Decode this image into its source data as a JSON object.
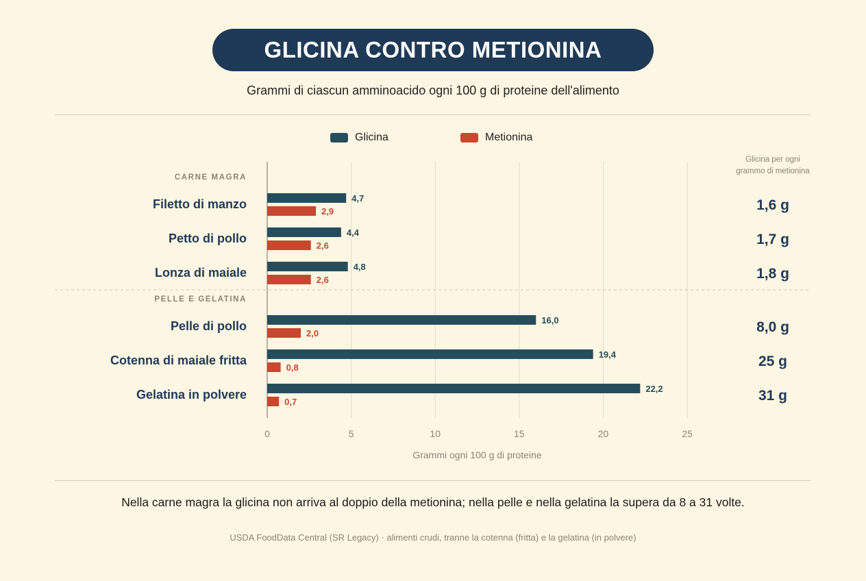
{
  "title": "GLICINA CONTRO METIONINA",
  "subtitle": "Grammi di ciascun amminoacido ogni 100 g di proteine dell'alimento",
  "caption": "Nella carne magra la glicina non arriva al doppio della metionina; nella pelle e nella gelatina la supera da 8 a 31 volte.",
  "source": "USDA FoodData Central (SR Legacy) · alimenti crudi, tranne la cotenna (fritta) e la gelatina (in polvere)",
  "colors": {
    "glicina": "#264d5c",
    "metionina": "#c8472f",
    "title_bg": "#1f3a56",
    "label": "#1f3a56"
  },
  "chart_data": {
    "type": "bar",
    "orientation": "horizontal",
    "xlabel": "Grammi ogni 100 g di proteine",
    "xlim": [
      0,
      25
    ],
    "xticks": [
      0,
      5,
      10,
      15,
      20,
      25
    ],
    "legend": "top-center",
    "ratio_header": [
      "Glicina per ogni",
      "grammo di metionina"
    ],
    "series": [
      {
        "name": "Glicina",
        "color": "#264d5c"
      },
      {
        "name": "Metionina",
        "color": "#c8472f"
      }
    ],
    "groups": [
      {
        "label": "CARNE MAGRA",
        "items": [
          {
            "name": "Filetto di manzo",
            "glicina": 4.7,
            "glicina_label": "4,7",
            "metionina": 2.9,
            "metionina_label": "2,9",
            "ratio": "1,6 g"
          },
          {
            "name": "Petto di pollo",
            "glicina": 4.4,
            "glicina_label": "4,4",
            "metionina": 2.6,
            "metionina_label": "2,6",
            "ratio": "1,7 g"
          },
          {
            "name": "Lonza di maiale",
            "glicina": 4.8,
            "glicina_label": "4,8",
            "metionina": 2.6,
            "metionina_label": "2,6",
            "ratio": "1,8 g"
          }
        ]
      },
      {
        "label": "PELLE E GELATINA",
        "items": [
          {
            "name": "Pelle di pollo",
            "glicina": 16.0,
            "glicina_label": "16,0",
            "metionina": 2.0,
            "metionina_label": "2,0",
            "ratio": "8,0 g"
          },
          {
            "name": "Cotenna di maiale fritta",
            "glicina": 19.4,
            "glicina_label": "19,4",
            "metionina": 0.8,
            "metionina_label": "0,8",
            "ratio": "25 g"
          },
          {
            "name": "Gelatina in polvere",
            "glicina": 22.2,
            "glicina_label": "22,2",
            "metionina": 0.7,
            "metionina_label": "0,7",
            "ratio": "31 g"
          }
        ]
      }
    ]
  }
}
